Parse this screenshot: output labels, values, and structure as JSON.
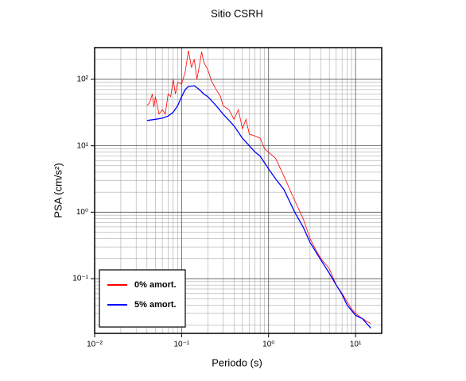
{
  "chart_data": {
    "type": "line",
    "title": "Sitio CSRH",
    "x_label": "Periodo (s)",
    "y_label": "PSA (cm/s²)",
    "xscale": "log",
    "yscale": "log",
    "grid": true,
    "legend_position": "lower left",
    "xlim": [
      0.01,
      20
    ],
    "ylim": [
      0.015,
      300
    ],
    "xticks": [
      {
        "value": 0.01,
        "label": "10⁻²"
      },
      {
        "value": 0.1,
        "label": "10⁻¹"
      },
      {
        "value": 1,
        "label": "10⁰"
      },
      {
        "value": 10,
        "label": "10¹"
      }
    ],
    "yticks": [
      {
        "value": 0.1,
        "label": "10⁻¹"
      },
      {
        "value": 1,
        "label": "10⁰"
      },
      {
        "value": 10,
        "label": "10¹"
      },
      {
        "value": 100,
        "label": "10²"
      }
    ],
    "xminorticks": [
      0.02,
      0.03,
      0.04,
      0.05,
      0.06,
      0.07,
      0.08,
      0.09,
      0.2,
      0.3,
      0.4,
      0.5,
      0.6,
      0.7,
      0.8,
      0.9,
      2,
      3,
      4,
      5,
      6,
      7,
      8,
      9
    ],
    "yminorticks": [
      0.02,
      0.03,
      0.04,
      0.05,
      0.06,
      0.07,
      0.08,
      0.09,
      0.2,
      0.3,
      0.4,
      0.5,
      0.6,
      0.7,
      0.8,
      0.9,
      2,
      3,
      4,
      5,
      6,
      7,
      8,
      9,
      20,
      30,
      40,
      50,
      60,
      70,
      80,
      90,
      200
    ],
    "series": [
      {
        "name": "0% amort.",
        "color": "#ff0000",
        "x": [
          0.04,
          0.043,
          0.046,
          0.048,
          0.05,
          0.055,
          0.06,
          0.065,
          0.07,
          0.075,
          0.08,
          0.085,
          0.09,
          0.1,
          0.11,
          0.12,
          0.13,
          0.14,
          0.15,
          0.16,
          0.17,
          0.18,
          0.2,
          0.22,
          0.25,
          0.28,
          0.3,
          0.35,
          0.4,
          0.45,
          0.5,
          0.55,
          0.6,
          0.7,
          0.8,
          0.9,
          1,
          1.2,
          1.5,
          2,
          2.5,
          3,
          3.5,
          4,
          5,
          6,
          7,
          8,
          9,
          10,
          12,
          15
        ],
        "values": [
          40,
          45,
          60,
          38,
          55,
          30,
          35,
          30,
          60,
          55,
          100,
          60,
          90,
          85,
          130,
          270,
          150,
          200,
          100,
          160,
          260,
          180,
          140,
          95,
          70,
          55,
          40,
          35,
          25,
          35,
          18,
          25,
          15,
          14,
          13,
          9,
          8,
          6.5,
          3.5,
          1.5,
          0.8,
          0.4,
          0.27,
          0.2,
          0.14,
          0.08,
          0.06,
          0.045,
          0.035,
          0.03,
          0.025,
          0.021
        ]
      },
      {
        "name": "5% amort.",
        "color": "#0000ff",
        "x": [
          0.04,
          0.05,
          0.06,
          0.07,
          0.08,
          0.09,
          0.1,
          0.11,
          0.12,
          0.14,
          0.16,
          0.18,
          0.2,
          0.25,
          0.3,
          0.4,
          0.5,
          0.6,
          0.7,
          0.8,
          1,
          1.2,
          1.5,
          2,
          2.5,
          3,
          4,
          5,
          6,
          7,
          8,
          10,
          12,
          15
        ],
        "values": [
          24,
          25,
          26,
          28,
          32,
          40,
          55,
          70,
          78,
          80,
          70,
          60,
          55,
          40,
          30,
          20,
          13,
          10,
          8,
          7,
          4.5,
          3.2,
          2.2,
          1,
          0.6,
          0.35,
          0.19,
          0.12,
          0.08,
          0.058,
          0.04,
          0.028,
          0.025,
          0.018
        ]
      }
    ]
  }
}
